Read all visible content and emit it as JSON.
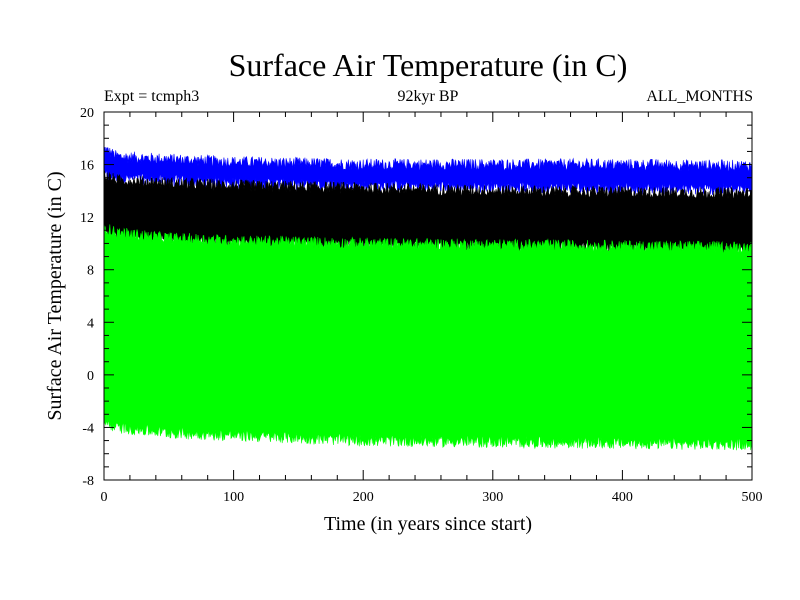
{
  "chart_data": {
    "type": "area",
    "title": "Surface Air Temperature (in C)",
    "subtitle_left": "Expt = tcmph3",
    "subtitle_center": "92kyr BP",
    "subtitle_right": "ALL_MONTHS",
    "xlabel": "Time (in years since start)",
    "ylabel": "Surface Air Temperature (in C)",
    "xlim": [
      0,
      500
    ],
    "ylim": [
      -8,
      20
    ],
    "x_ticks": [
      0,
      100,
      200,
      300,
      400,
      500
    ],
    "y_ticks": [
      -8,
      -4,
      0,
      4,
      8,
      12,
      16,
      20
    ],
    "grid": false,
    "series": [
      {
        "color": "#0000ff",
        "x": [
          0,
          10,
          50,
          100,
          200,
          300,
          400,
          500
        ],
        "low": [
          15.2,
          15.0,
          14.8,
          14.6,
          14.4,
          14.3,
          14.2,
          14.1
        ],
        "high": [
          17.2,
          16.6,
          16.4,
          16.2,
          16.0,
          16.0,
          16.0,
          15.9
        ]
      },
      {
        "color": "#000000",
        "x": [
          0,
          10,
          50,
          100,
          200,
          300,
          400,
          500
        ],
        "low": [
          11.0,
          10.4,
          10.2,
          10.0,
          9.8,
          9.7,
          9.6,
          9.5
        ],
        "high": [
          15.2,
          14.8,
          14.6,
          14.4,
          14.2,
          14.0,
          13.9,
          13.8
        ]
      },
      {
        "color": "#00ff00",
        "x": [
          0,
          10,
          50,
          100,
          200,
          300,
          400,
          500
        ],
        "low": [
          -3.6,
          -4.0,
          -4.4,
          -4.6,
          -5.0,
          -5.1,
          -5.2,
          -5.3
        ],
        "high": [
          11.2,
          10.8,
          10.4,
          10.2,
          10.0,
          9.9,
          9.8,
          9.7
        ]
      }
    ]
  }
}
